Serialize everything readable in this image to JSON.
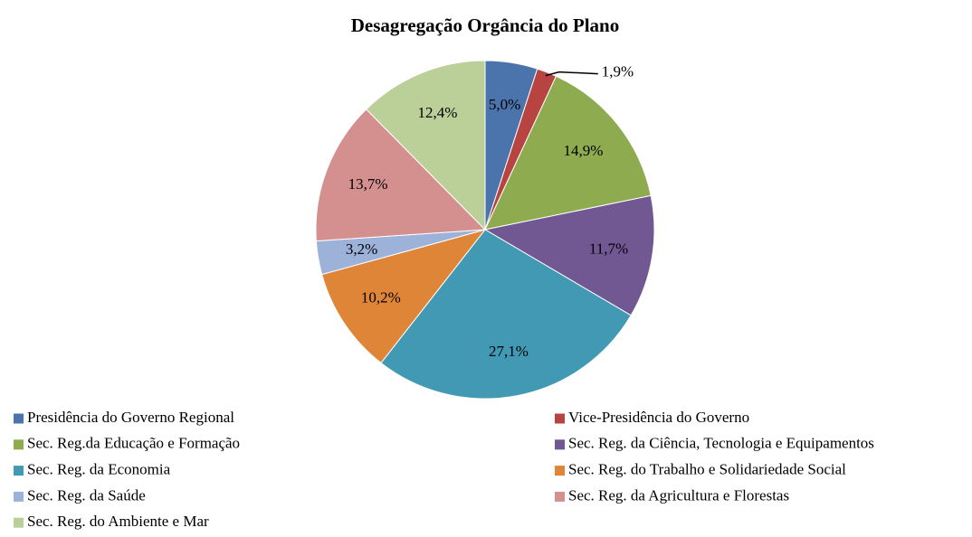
{
  "chart_data": {
    "type": "pie",
    "title": "Desagregação Orgância do Plano",
    "categories": [
      "Presidência do Governo Regional",
      "Vice-Presidência do Governo",
      "Sec. Reg.da Educação e Formação",
      "Sec. Reg. da Ciência, Tecnologia e  Equipamentos",
      "Sec. Reg. da Economia",
      "Sec. Reg. do Trabalho e Solidariedade Social",
      "Sec. Reg. da Saúde",
      "Sec. Reg. da Agricultura e Florestas",
      "Sec. Reg. do Ambiente e Mar"
    ],
    "values": [
      5.0,
      1.9,
      14.9,
      11.7,
      27.1,
      10.2,
      3.2,
      13.7,
      12.4
    ],
    "value_labels": [
      "5,0%",
      "1,9%",
      "14,9%",
      "11,7%",
      "27,1%",
      "10,2%",
      "3,2%",
      "13,7%",
      "12,4%"
    ],
    "colors": [
      "#4a74ab",
      "#b74441",
      "#8eab50",
      "#725893",
      "#4299b3",
      "#df8538",
      "#9db2d8",
      "#d3908e",
      "#bbcf98"
    ],
    "legend": "bottom"
  }
}
